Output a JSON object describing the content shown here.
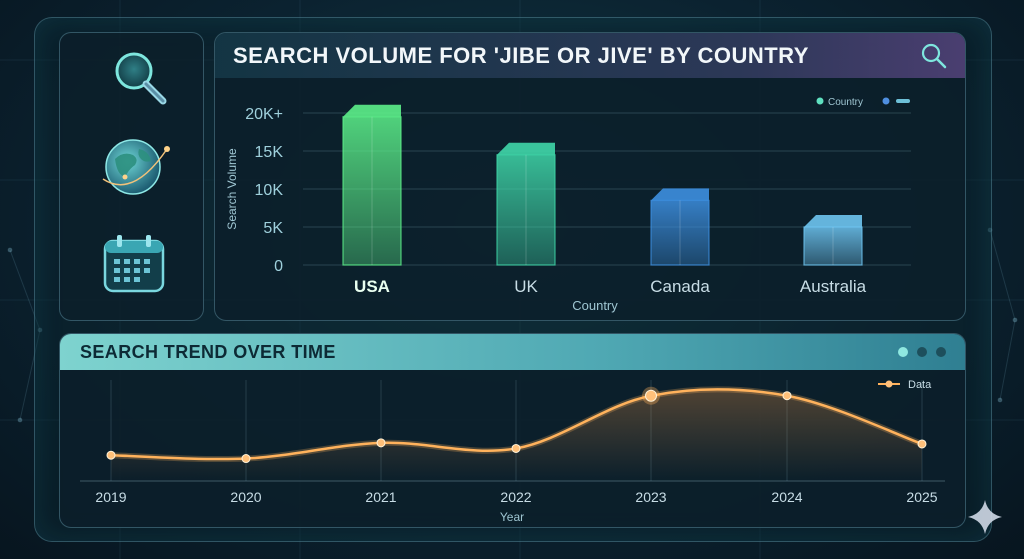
{
  "top_panel": {
    "title": "SEARCH VOLUME FOR 'JIBE OR JIVE' BY COUNTRY"
  },
  "bottom_panel": {
    "title": "SEARCH TREND OVER TIME"
  },
  "sidebar": {
    "icons": [
      "search-icon",
      "globe-icon",
      "calendar-icon"
    ]
  },
  "colors": {
    "accent_teal": "#5fd0c8",
    "line_orange": "#ffb25c",
    "bar_usa": "#5cf08a",
    "bar_uk": "#3fd6a8",
    "bar_canada": "#3d8fe0",
    "bar_australia": "#6ec4f0"
  },
  "chart_data": [
    {
      "type": "bar",
      "title": "SEARCH VOLUME FOR 'JIBE OR JIVE' BY COUNTRY",
      "xlabel": "Country",
      "ylabel": "Search Volume",
      "categories": [
        "USA",
        "UK",
        "Canada",
        "Australia"
      ],
      "values": [
        19500,
        14500,
        8500,
        5000
      ],
      "yticks": [
        "0",
        "5K",
        "10K",
        "15K",
        "20K+"
      ],
      "ylim": [
        0,
        20000
      ],
      "legend": {
        "position": "top-right",
        "label": "Country"
      },
      "grid": true
    },
    {
      "type": "line",
      "title": "SEARCH TREND OVER TIME",
      "xlabel": "Year",
      "x": [
        "2019",
        "2020",
        "2021",
        "2022",
        "2023",
        "2024",
        "2025"
      ],
      "values": [
        2.3,
        2.0,
        3.4,
        2.9,
        7.6,
        7.6,
        3.3
      ],
      "highlight_index": 4,
      "legend": {
        "position": "top-right",
        "label": "Data"
      },
      "grid": "vertical"
    }
  ]
}
